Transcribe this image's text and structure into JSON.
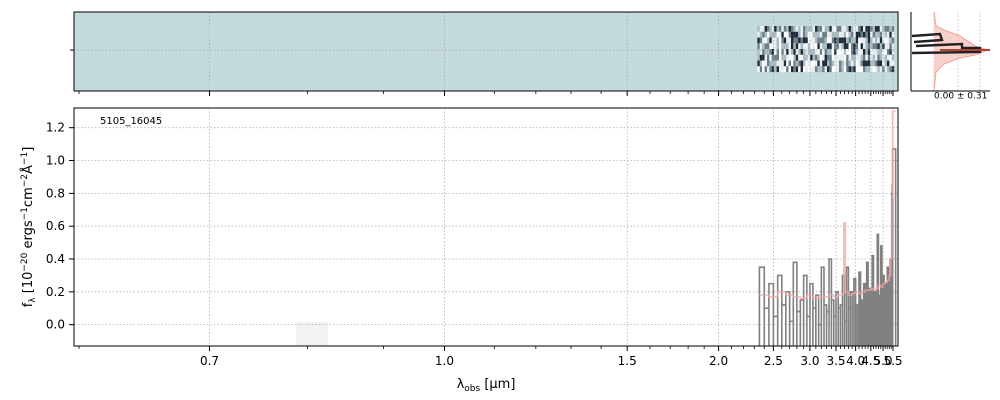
{
  "chart_data": [
    {
      "type": "heatmap",
      "description_of_panel": "2D spectrum",
      "colors": {
        "background": "#c5dada",
        "dark": "#111827",
        "light": "#ffffff"
      },
      "data_start_x": 2.33,
      "data_end_x": 5.48
    },
    {
      "type": "line",
      "object_label": "5105_16045",
      "xlabel": "λ_obs [μm]",
      "ylabel": "f_λ [10^-20 ergs^-1cm^-2Å^-1]",
      "x_scale": "reciprocal",
      "xlim": [
        0.6,
        5.5
      ],
      "ylim": [
        -0.13,
        1.32
      ],
      "x_ticks": [
        {
          "value": 0.7,
          "label": "0.7"
        },
        {
          "value": 1.0,
          "label": "1.0"
        },
        {
          "value": 1.5,
          "label": "1.5"
        },
        {
          "value": 2.0,
          "label": "2.0"
        },
        {
          "value": 2.5,
          "label": "2.5"
        },
        {
          "value": 3.0,
          "label": "3.0"
        },
        {
          "value": 3.5,
          "label": "3.5"
        },
        {
          "value": 4.0,
          "label": "4.0"
        },
        {
          "value": 4.5,
          "label": "4.5"
        },
        {
          "value": 5.0,
          "label": "5.0"
        },
        {
          "value": 5.5,
          "label": "5.5"
        }
      ],
      "y_ticks": [
        {
          "value": 0.0,
          "label": "0.0"
        },
        {
          "value": 0.2,
          "label": "0.2"
        },
        {
          "value": 0.4,
          "label": "0.4"
        },
        {
          "value": 0.6,
          "label": "0.6"
        },
        {
          "value": 0.8,
          "label": "0.8"
        },
        {
          "value": 1.0,
          "label": "1.0"
        },
        {
          "value": 1.2,
          "label": "1.2"
        }
      ],
      "grid": true,
      "series": [
        {
          "color": "#808080",
          "style": "steps",
          "x": [
            2.35,
            2.4,
            2.45,
            2.5,
            2.55,
            2.6,
            2.65,
            2.7,
            2.75,
            2.8,
            2.85,
            2.9,
            2.95,
            3.0,
            3.05,
            3.1,
            3.15,
            3.2,
            3.25,
            3.3,
            3.35,
            3.4,
            3.45,
            3.5,
            3.55,
            3.6,
            3.65,
            3.7,
            3.75,
            3.8,
            3.85,
            3.9,
            3.95,
            4.0,
            4.05,
            4.1,
            4.15,
            4.2,
            4.25,
            4.3,
            4.35,
            4.4,
            4.45,
            4.5,
            4.55,
            4.6,
            4.65,
            4.7,
            4.75,
            4.8,
            4.85,
            4.9,
            4.95,
            5.0,
            5.05,
            5.1,
            5.15,
            5.2,
            5.25,
            5.3,
            5.35,
            5.4,
            5.43,
            5.46,
            5.48
          ],
          "y": [
            0.35,
            0.1,
            0.25,
            0.05,
            0.3,
            0.12,
            0.2,
            0.02,
            0.38,
            0.08,
            0.15,
            0.3,
            0.05,
            0.25,
            0.1,
            0.18,
            0.0,
            0.35,
            0.12,
            0.08,
            0.4,
            0.15,
            0.05,
            0.2,
            0.1,
            0.12,
            0.3,
            0.02,
            0.35,
            0.1,
            0.2,
            0.05,
            0.28,
            0.12,
            0.08,
            0.32,
            0.15,
            0.1,
            0.25,
            0.05,
            0.38,
            0.12,
            0.22,
            0.06,
            0.42,
            0.15,
            0.2,
            0.1,
            0.55,
            0.12,
            0.18,
            0.48,
            0.1,
            0.3,
            0.15,
            0.25,
            0.2,
            0.35,
            0.12,
            0.28,
            0.4,
            0.3,
            0.8,
            0.85,
            1.07
          ]
        },
        {
          "color": "#f4a4a4",
          "style": "steps",
          "x": [
            2.35,
            2.45,
            2.55,
            2.65,
            2.75,
            2.85,
            2.95,
            3.05,
            3.15,
            3.25,
            3.35,
            3.45,
            3.55,
            3.65,
            3.68,
            3.72,
            3.8,
            3.9,
            4.0,
            4.1,
            4.2,
            4.3,
            4.4,
            4.5,
            4.6,
            4.7,
            4.8,
            4.9,
            5.0,
            5.1,
            5.2,
            5.3,
            5.38,
            5.44,
            5.48
          ],
          "y": [
            0.18,
            0.17,
            0.2,
            0.18,
            0.17,
            0.16,
            0.18,
            0.16,
            0.17,
            0.17,
            0.18,
            0.17,
            0.18,
            0.19,
            0.62,
            0.2,
            0.18,
            0.19,
            0.2,
            0.19,
            0.2,
            0.21,
            0.21,
            0.22,
            0.21,
            0.22,
            0.24,
            0.23,
            0.25,
            0.26,
            0.27,
            0.3,
            0.4,
            0.78,
            1.3
          ]
        }
      ]
    },
    {
      "type": "line",
      "description_of_panel": "collapsed spatial profile",
      "annotation": "0.00 ± 0.31"
    }
  ]
}
